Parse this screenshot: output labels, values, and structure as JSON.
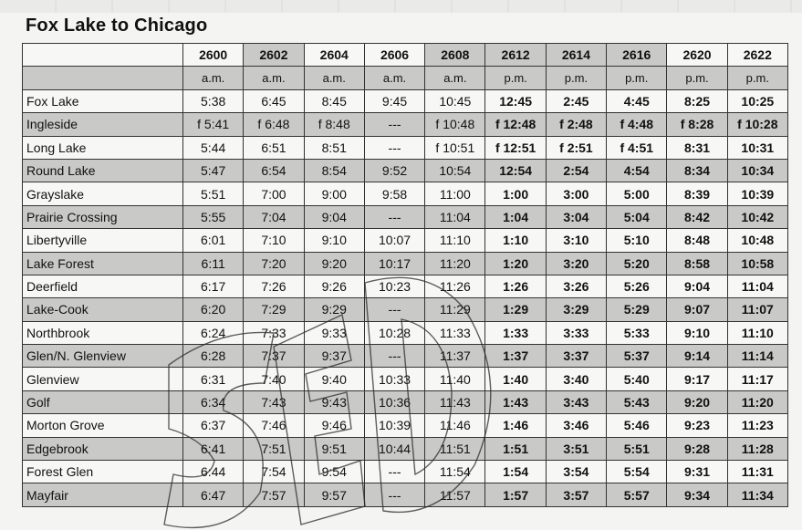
{
  "title": "Fox Lake to Chicago",
  "trains": [
    "2600",
    "2602",
    "2604",
    "2606",
    "2608",
    "2612",
    "2614",
    "2616",
    "2620",
    "2622"
  ],
  "periods": [
    "a.m.",
    "a.m.",
    "a.m.",
    "a.m.",
    "a.m.",
    "p.m.",
    "p.m.",
    "p.m.",
    "p.m.",
    "p.m."
  ],
  "stations": [
    {
      "name": "Fox Lake",
      "times": [
        "5:38",
        "6:45",
        "8:45",
        "9:45",
        "10:45",
        "12:45",
        "2:45",
        "4:45",
        "8:25",
        "10:25"
      ]
    },
    {
      "name": "Ingleside",
      "times": [
        "f 5:41",
        "f 6:48",
        "f 8:48",
        "---",
        "f 10:48",
        "f 12:48",
        "f 2:48",
        "f 4:48",
        "f 8:28",
        "f 10:28"
      ]
    },
    {
      "name": "Long Lake",
      "times": [
        "5:44",
        "6:51",
        "8:51",
        "---",
        "f 10:51",
        "f 12:51",
        "f 2:51",
        "f 4:51",
        "8:31",
        "10:31"
      ]
    },
    {
      "name": "Round Lake",
      "times": [
        "5:47",
        "6:54",
        "8:54",
        "9:52",
        "10:54",
        "12:54",
        "2:54",
        "4:54",
        "8:34",
        "10:34"
      ]
    },
    {
      "name": "Grayslake",
      "times": [
        "5:51",
        "7:00",
        "9:00",
        "9:58",
        "11:00",
        "1:00",
        "3:00",
        "5:00",
        "8:39",
        "10:39"
      ]
    },
    {
      "name": "Prairie Crossing",
      "times": [
        "5:55",
        "7:04",
        "9:04",
        "---",
        "11:04",
        "1:04",
        "3:04",
        "5:04",
        "8:42",
        "10:42"
      ]
    },
    {
      "name": "Libertyville",
      "times": [
        "6:01",
        "7:10",
        "9:10",
        "10:07",
        "11:10",
        "1:10",
        "3:10",
        "5:10",
        "8:48",
        "10:48"
      ]
    },
    {
      "name": "Lake Forest",
      "times": [
        "6:11",
        "7:20",
        "9:20",
        "10:17",
        "11:20",
        "1:20",
        "3:20",
        "5:20",
        "8:58",
        "10:58"
      ]
    },
    {
      "name": "Deerfield",
      "times": [
        "6:17",
        "7:26",
        "9:26",
        "10:23",
        "11:26",
        "1:26",
        "3:26",
        "5:26",
        "9:04",
        "11:04"
      ]
    },
    {
      "name": "Lake-Cook",
      "times": [
        "6:20",
        "7:29",
        "9:29",
        "---",
        "11:29",
        "1:29",
        "3:29",
        "5:29",
        "9:07",
        "11:07"
      ]
    },
    {
      "name": "Northbrook",
      "times": [
        "6:24",
        "7:33",
        "9:33",
        "10:28",
        "11:33",
        "1:33",
        "3:33",
        "5:33",
        "9:10",
        "11:10"
      ]
    },
    {
      "name": "Glen/N. Glenview",
      "times": [
        "6:28",
        "7:37",
        "9:37",
        "---",
        "11:37",
        "1:37",
        "3:37",
        "5:37",
        "9:14",
        "11:14"
      ]
    },
    {
      "name": "Glenview",
      "times": [
        "6:31",
        "7:40",
        "9:40",
        "10:33",
        "11:40",
        "1:40",
        "3:40",
        "5:40",
        "9:17",
        "11:17"
      ]
    },
    {
      "name": "Golf",
      "times": [
        "6:34",
        "7:43",
        "9:43",
        "10:36",
        "11:43",
        "1:43",
        "3:43",
        "5:43",
        "9:20",
        "11:20"
      ]
    },
    {
      "name": "Morton Grove",
      "times": [
        "6:37",
        "7:46",
        "9:46",
        "10:39",
        "11:46",
        "1:46",
        "3:46",
        "5:46",
        "9:23",
        "11:23"
      ]
    },
    {
      "name": "Edgebrook",
      "times": [
        "6:41",
        "7:51",
        "9:51",
        "10:44",
        "11:51",
        "1:51",
        "3:51",
        "5:51",
        "9:28",
        "11:28"
      ]
    },
    {
      "name": "Forest Glen",
      "times": [
        "6:44",
        "7:54",
        "9:54",
        "---",
        "11:54",
        "1:54",
        "3:54",
        "5:54",
        "9:31",
        "11:31"
      ]
    },
    {
      "name": "Mayfair",
      "times": [
        "6:47",
        "7:57",
        "9:57",
        "---",
        "11:57",
        "1:57",
        "3:57",
        "5:57",
        "9:34",
        "11:34"
      ]
    }
  ],
  "colors": {
    "shade": "#c9c9c7",
    "paper": "#f7f7f5",
    "ink": "#111111"
  }
}
